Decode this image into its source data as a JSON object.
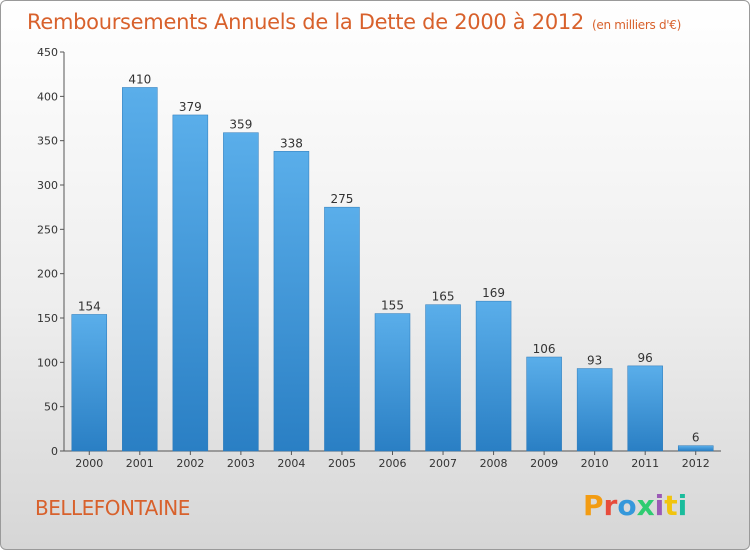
{
  "header": {
    "title": "Remboursements Annuels de la Dette de 2000 à 2012",
    "unit": "(en milliers d'€)"
  },
  "footer": {
    "commune": "BELLEFONTAINE",
    "logo": "Proxiti",
    "logo_colors": [
      "#f39c12",
      "#e74c3c",
      "#3498db",
      "#2ecc71",
      "#9b59b6",
      "#f1c40f",
      "#1abc9c"
    ]
  },
  "chart_data": {
    "type": "bar",
    "categories": [
      "2000",
      "2001",
      "2002",
      "2003",
      "2004",
      "2005",
      "2006",
      "2007",
      "2008",
      "2009",
      "2010",
      "2011",
      "2012"
    ],
    "values": [
      154,
      410,
      379,
      359,
      338,
      275,
      155,
      165,
      169,
      106,
      93,
      96,
      6
    ],
    "data_labels": [
      "154",
      "410",
      "379",
      "359",
      "338",
      "275",
      "155",
      "165",
      "169",
      "106",
      "93",
      "96",
      "6"
    ],
    "yticks": [
      "0",
      "50",
      "100",
      "150",
      "200",
      "250",
      "300",
      "350",
      "400",
      "450"
    ],
    "ylim": [
      0,
      450
    ],
    "grid": false,
    "bar_color": "#3d97db"
  }
}
